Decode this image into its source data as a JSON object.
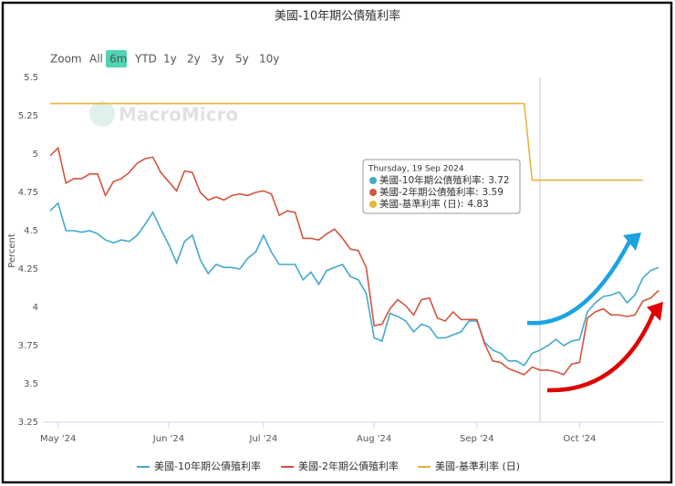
{
  "range_selector": {
    "label": "Zoom",
    "options": [
      "All",
      "6m",
      "YTD",
      "1y",
      "2y",
      "3y",
      "5y",
      "10y"
    ],
    "selected": "6m"
  },
  "watermark": "MacroMicro",
  "tooltip": {
    "date": "Thursday, 19 Sep 2024",
    "separator": ":"
  },
  "chart_data": {
    "type": "line",
    "title": "美國-10年期公債殖利率",
    "y_label": "Percent",
    "categories": [
      null,
      "May '24",
      null,
      null,
      null,
      null,
      null,
      null,
      null,
      null,
      null,
      null,
      null,
      null,
      null,
      "Jun '24",
      null,
      null,
      null,
      null,
      null,
      null,
      null,
      null,
      null,
      null,
      null,
      "Jul '24",
      null,
      null,
      null,
      null,
      null,
      null,
      null,
      null,
      null,
      null,
      null,
      null,
      null,
      "Aug '24",
      null,
      null,
      null,
      null,
      null,
      null,
      null,
      null,
      null,
      null,
      null,
      null,
      "Sep '24",
      null,
      null,
      null,
      null,
      null,
      null,
      null,
      null,
      null,
      null,
      null,
      null,
      "Oct '24",
      null,
      null,
      null,
      null,
      null,
      null,
      null,
      null,
      null,
      null
    ],
    "series": [
      {
        "name": "美國-10年期公債殖利率",
        "color": "#45a9cc",
        "values": [
          4.63,
          4.68,
          4.5,
          4.5,
          4.49,
          4.5,
          4.48,
          4.44,
          4.42,
          4.44,
          4.43,
          4.47,
          4.54,
          4.62,
          4.51,
          4.41,
          4.29,
          4.43,
          4.47,
          4.31,
          4.22,
          4.28,
          4.26,
          4.26,
          4.25,
          4.32,
          4.36,
          4.47,
          4.36,
          4.28,
          4.28,
          4.28,
          4.18,
          4.23,
          4.15,
          4.24,
          4.26,
          4.28,
          4.2,
          4.18,
          4.09,
          3.8,
          3.78,
          3.96,
          3.94,
          3.91,
          3.84,
          3.89,
          3.87,
          3.8,
          3.8,
          3.82,
          3.84,
          3.91,
          3.91,
          3.77,
          3.72,
          3.7,
          3.65,
          3.65,
          3.62,
          3.7,
          3.72,
          3.75,
          3.79,
          3.75,
          3.78,
          3.79,
          3.97,
          4.03,
          4.07,
          4.08,
          4.1,
          4.03,
          4.08,
          4.19,
          4.24,
          4.26
        ]
      },
      {
        "name": "美國-2年期公債殖利率",
        "color": "#d2553f",
        "values": [
          4.99,
          5.04,
          4.81,
          4.84,
          4.84,
          4.87,
          4.87,
          4.73,
          4.82,
          4.84,
          4.88,
          4.94,
          4.97,
          4.98,
          4.88,
          4.82,
          4.76,
          4.89,
          4.88,
          4.75,
          4.7,
          4.72,
          4.7,
          4.73,
          4.74,
          4.73,
          4.75,
          4.76,
          4.74,
          4.6,
          4.63,
          4.62,
          4.45,
          4.45,
          4.44,
          4.48,
          4.51,
          4.45,
          4.38,
          4.37,
          4.26,
          3.88,
          3.89,
          3.99,
          4.05,
          4.01,
          3.95,
          4.05,
          4.06,
          3.93,
          3.91,
          3.97,
          3.92,
          3.92,
          3.92,
          3.76,
          3.65,
          3.64,
          3.6,
          3.58,
          3.56,
          3.61,
          3.59,
          3.59,
          3.58,
          3.56,
          3.63,
          3.64,
          3.93,
          3.97,
          3.99,
          3.95,
          3.95,
          3.94,
          3.95,
          4.04,
          4.06,
          4.11
        ]
      },
      {
        "name": "美國-基準利率 (日)",
        "color": "#e8b43e",
        "values": [
          5.33,
          5.33,
          5.33,
          5.33,
          5.33,
          5.33,
          5.33,
          5.33,
          5.33,
          5.33,
          5.33,
          5.33,
          5.33,
          5.33,
          5.33,
          5.33,
          5.33,
          5.33,
          5.33,
          5.33,
          5.33,
          5.33,
          5.33,
          5.33,
          5.33,
          5.33,
          5.33,
          5.33,
          5.33,
          5.33,
          5.33,
          5.33,
          5.33,
          5.33,
          5.33,
          5.33,
          5.33,
          5.33,
          5.33,
          5.33,
          5.33,
          5.33,
          5.33,
          5.33,
          5.33,
          5.33,
          5.33,
          5.33,
          5.33,
          5.33,
          5.33,
          5.33,
          5.33,
          5.33,
          5.33,
          5.33,
          5.33,
          5.33,
          5.33,
          5.33,
          5.33,
          4.83,
          4.83,
          4.83,
          4.83,
          4.83,
          4.83,
          4.83,
          4.83,
          4.83,
          4.83,
          4.83,
          4.83,
          4.83,
          4.83,
          4.83,
          null,
          null
        ]
      }
    ],
    "ylim": [
      3.25,
      5.5
    ],
    "yticks": [
      3.25,
      3.5,
      3.75,
      4,
      4.25,
      4.5,
      4.75,
      5,
      5.25,
      5.5
    ],
    "grid": false
  }
}
